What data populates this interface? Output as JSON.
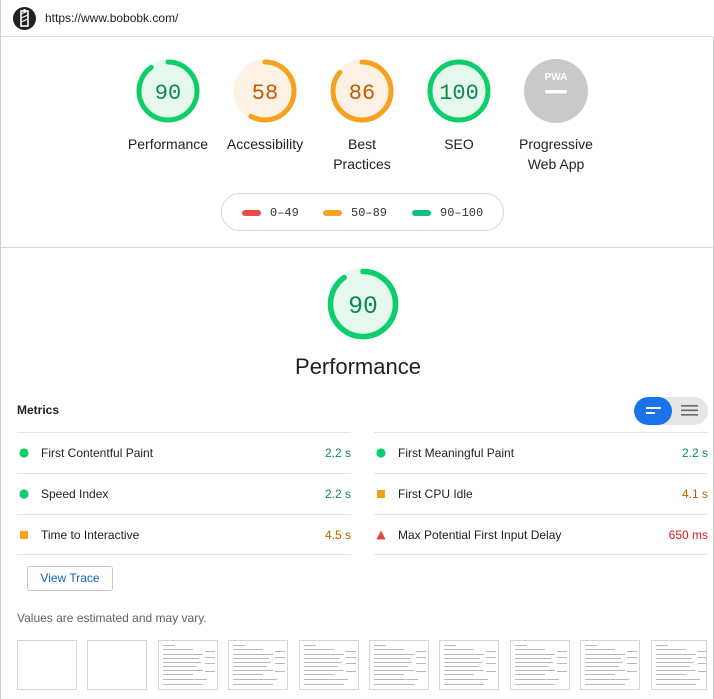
{
  "browser": {
    "url": "https://www.bobobk.com/"
  },
  "summary_gauges": [
    {
      "score": "90",
      "label": "Performance",
      "value": 90,
      "status": "pass"
    },
    {
      "score": "58",
      "label": "Accessibility",
      "value": 58,
      "status": "average"
    },
    {
      "score": "86",
      "label": "Best\nPractices",
      "value": 86,
      "status": "average"
    },
    {
      "score": "100",
      "label": "SEO",
      "value": 100,
      "status": "pass"
    },
    {
      "score": "",
      "label": "Progressive\nWeb App",
      "value": null,
      "status": "na",
      "badge": "PWA"
    }
  ],
  "legend": [
    {
      "range": "0–49",
      "color": "#eb4b45"
    },
    {
      "range": "50–89",
      "color": "#f5a523"
    },
    {
      "range": "90–100",
      "color": "#10c27e"
    }
  ],
  "performance": {
    "score": "90",
    "value": 90,
    "title": "Performance"
  },
  "metrics": {
    "title": "Metrics",
    "left": [
      {
        "name": "First Contentful Paint",
        "value": "2.2 s",
        "status": "pass"
      },
      {
        "name": "Speed Index",
        "value": "2.2 s",
        "status": "pass"
      },
      {
        "name": "Time to Interactive",
        "value": "4.5 s",
        "status": "average"
      }
    ],
    "right": [
      {
        "name": "First Meaningful Paint",
        "value": "2.2 s",
        "status": "pass"
      },
      {
        "name": "First CPU Idle",
        "value": "4.1 s",
        "status": "average"
      },
      {
        "name": "Max Potential First Input Delay",
        "value": "650 ms",
        "status": "fail"
      }
    ]
  },
  "view_trace_label": "View Trace",
  "note": "Values are estimated and may vary.",
  "filmstrip_count": 10,
  "colors": {
    "pass": "#0cce6b",
    "pass_fill": "#e6f8ee",
    "pass_text": "#0a8a50",
    "average": "#f6a21f",
    "average_fill": "#fdf2e3",
    "average_text": "#c35b00",
    "fail": "#e8423c",
    "fail_text": "#d11b1b",
    "na": "#c9c9c9",
    "accent": "#1a73e8"
  }
}
